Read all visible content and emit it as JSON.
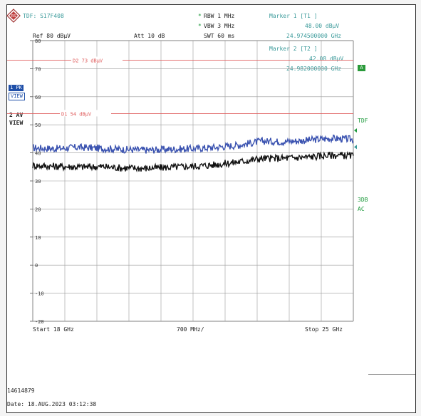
{
  "header": {
    "tdf": "TDF: S17F408",
    "rbw": "RBW 1 MHz",
    "vbw": "VBW 3 MHz",
    "ref": "Ref  80 dBµV",
    "att": "Att  10 dB",
    "swt": "SWT 60 ms",
    "rbw_star": "*",
    "vbw_star": "*"
  },
  "markers": [
    {
      "title": "Marker 1 [T1 ]",
      "level": "48.00 dBµV",
      "freq": "24.974500000 GHz"
    },
    {
      "title": "Marker 2 [T2 ]",
      "level": "42.08 dBµV",
      "freq": "24.982000000 GHz"
    }
  ],
  "side": {
    "trace1_line1": "1 PK",
    "trace1_line2": "VIEW",
    "trace2_line1": "2 AV",
    "trace2_line2": "VIEW",
    "a_box": "A",
    "tdf": "TDF",
    "u3db": "3DB",
    "ac": "AC"
  },
  "footer": {
    "start": "Start  18 GHz",
    "span": "700 MHz/",
    "stop": "Stop  25 GHz",
    "id": "14614879",
    "date": "Date: 18.AUG.2023  03:12:38"
  },
  "colors": {
    "trace_pk": "#3a52b0",
    "trace_av": "#111111",
    "limit": "#e06060",
    "grid": "#9a9a9a",
    "marker_text": "#3a9a9a"
  },
  "chart_data": {
    "type": "line",
    "title": "",
    "xlabel": "",
    "ylabel": "",
    "x_unit": "GHz",
    "xlim": [
      18,
      25
    ],
    "ylim": [
      -20,
      80
    ],
    "y_unit": "dBµV",
    "yticks": [
      80,
      70,
      60,
      50,
      40,
      30,
      20,
      10,
      0,
      -10,
      -20
    ],
    "ytick_labels": [
      "80",
      "70",
      "60",
      "50",
      "40",
      "30",
      "20",
      "10",
      "0",
      "-10",
      "-20"
    ],
    "grid": true,
    "limit_lines": [
      {
        "name": "D2 73 dBµV",
        "value": 73
      },
      {
        "name": "D1 54 dBµV",
        "value": 54
      }
    ],
    "series": [
      {
        "x": [
          18.0,
          18.5,
          19.0,
          19.5,
          20.0,
          20.5,
          21.0,
          21.5,
          22.0,
          22.5,
          23.0,
          23.5,
          24.0,
          24.5,
          25.0
        ],
        "values": [
          41.8,
          41.5,
          42.0,
          41.6,
          41.2,
          41.0,
          41.3,
          41.5,
          42.0,
          42.8,
          44.2,
          44.0,
          44.5,
          45.2,
          44.8
        ]
      },
      {
        "x": [
          18.0,
          18.5,
          19.0,
          19.5,
          20.0,
          20.5,
          21.0,
          21.5,
          22.0,
          22.5,
          23.0,
          23.5,
          24.0,
          24.5,
          25.0
        ],
        "values": [
          35.5,
          35.2,
          35.0,
          35.1,
          34.6,
          34.5,
          34.9,
          35.2,
          35.8,
          36.8,
          38.0,
          38.1,
          38.5,
          39.2,
          39.0
        ]
      }
    ]
  }
}
